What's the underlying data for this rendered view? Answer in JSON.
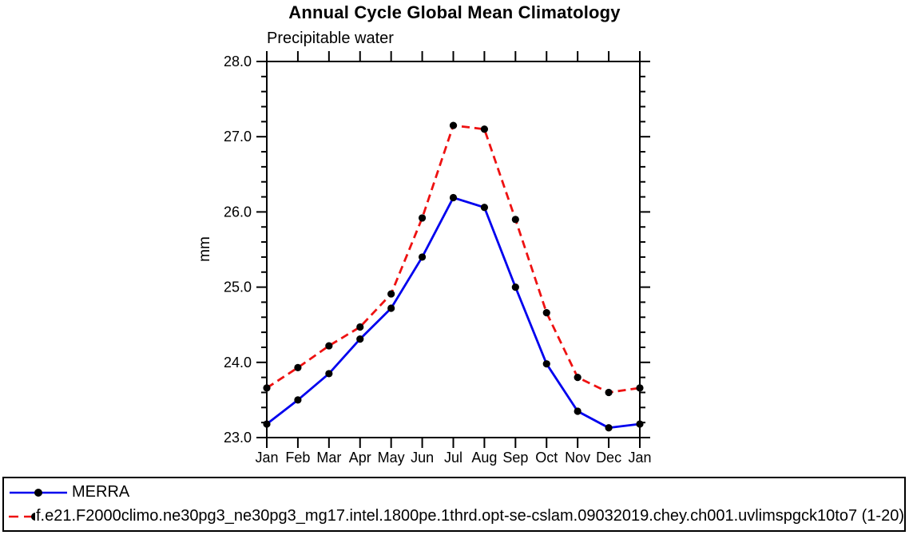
{
  "page": {
    "title": "Annual Cycle Global Mean Climatology",
    "subtitle": "Precipitable water"
  },
  "chart_data": {
    "type": "line",
    "title": "Annual Cycle Global Mean Climatology",
    "subtitle": "Precipitable water",
    "xlabel": "",
    "ylabel": "mm",
    "categories": [
      "Jan",
      "Feb",
      "Mar",
      "Apr",
      "May",
      "Jun",
      "Jul",
      "Aug",
      "Sep",
      "Oct",
      "Nov",
      "Dec",
      "Jan"
    ],
    "ylim": [
      23.0,
      28.0
    ],
    "y_major_ticks": [
      23.0,
      24.0,
      25.0,
      26.0,
      27.0,
      28.0
    ],
    "y_tick_labels": [
      "23.0",
      "24.0",
      "25.0",
      "26.0",
      "27.0",
      "28.0"
    ],
    "y_minor_step": 0.2,
    "grid": false,
    "legend_position": "bottom-left-box",
    "frame_color": "#000000",
    "marker_color": "#000000",
    "series": [
      {
        "name": "MERRA",
        "color": "#0000ee",
        "line_style": "solid",
        "marker": "filled-circle",
        "values": [
          23.18,
          23.5,
          23.85,
          24.31,
          24.72,
          25.4,
          26.19,
          26.06,
          25.0,
          23.98,
          23.35,
          23.13,
          23.18
        ]
      },
      {
        "name": "f.e21.F2000climo.ne30pg3_ne30pg3_mg17.intel.1800pe.1thrd.opt-se-cslam.09032019.chey.ch001.uvlimspgck10to7 (1-20)",
        "color": "#ee1111",
        "line_style": "dashed",
        "marker": "filled-circle",
        "values": [
          23.66,
          23.93,
          24.22,
          24.47,
          24.91,
          25.92,
          27.15,
          27.1,
          25.9,
          24.66,
          23.8,
          23.6,
          23.66
        ]
      }
    ]
  }
}
